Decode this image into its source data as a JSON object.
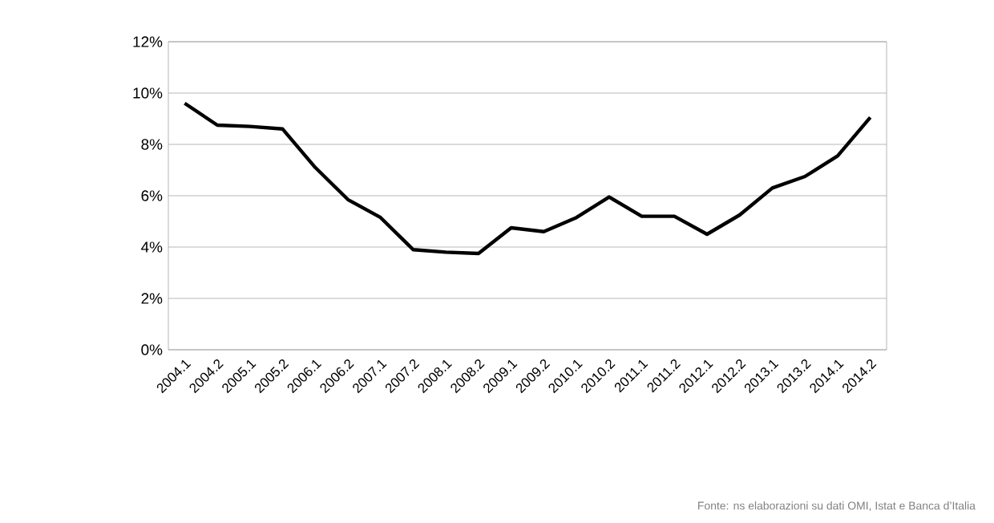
{
  "chart_data": {
    "type": "line",
    "categories": [
      "2004.1",
      "2004.2",
      "2005.1",
      "2005.2",
      "2006.1",
      "2006.2",
      "2007.1",
      "2007.2",
      "2008.1",
      "2008.2",
      "2009.1",
      "2009.2",
      "2010.1",
      "2010.2",
      "2011.1",
      "2011.2",
      "2012.1",
      "2012.2",
      "2013.1",
      "2013.2",
      "2014.1",
      "2014.2"
    ],
    "values": [
      9.6,
      8.75,
      8.7,
      8.6,
      7.1,
      5.85,
      5.15,
      3.9,
      3.8,
      3.75,
      4.75,
      4.6,
      5.15,
      5.95,
      5.2,
      5.2,
      4.5,
      5.25,
      6.3,
      6.75,
      7.55,
      9.05
    ],
    "color": "#000000",
    "ylim": [
      0,
      12
    ],
    "yticks": [
      {
        "value": 0,
        "label": "0%"
      },
      {
        "value": 2,
        "label": "2%"
      },
      {
        "value": 4,
        "label": "4%"
      },
      {
        "value": 6,
        "label": "6%"
      },
      {
        "value": 8,
        "label": "8%"
      },
      {
        "value": 10,
        "label": "10%"
      },
      {
        "value": 12,
        "label": "12%"
      }
    ],
    "grid": "y",
    "marker": "none",
    "line_style": "solid",
    "annotations": [
      "Fonte: ns elaborazioni su dati OMI, Istat e Banca d’Italia"
    ]
  }
}
